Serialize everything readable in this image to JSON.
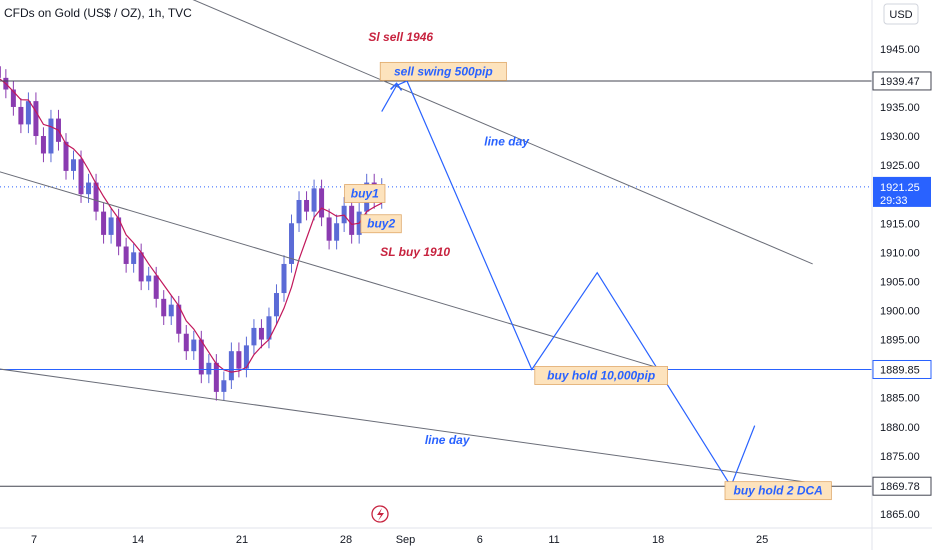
{
  "chart_data": {
    "type": "line",
    "title": "CFDs on Gold (US$ / OZ), 1h, TVC",
    "currency": "USD",
    "ylim": [
      1863,
      1953
    ],
    "y_ticks": [
      1945,
      1940,
      1935,
      1930,
      1925,
      1920,
      1915,
      1910,
      1905,
      1900,
      1895,
      1890,
      1885,
      1880,
      1875,
      1870,
      1865
    ],
    "y_tick_labels": [
      "1945.00",
      "1940.00",
      "1935.00",
      "1930.00",
      "1925.00",
      "1920.00",
      "1915.00",
      "1910.00",
      "1905.00",
      "1900.00",
      "1895.00",
      "1890.00",
      "1885.00",
      "1880.00",
      "1875.00",
      "1870.00",
      "1865.00"
    ],
    "x_ticks": [
      {
        "label": "7",
        "day": 7
      },
      {
        "label": "14",
        "day": 14
      },
      {
        "label": "21",
        "day": 21
      },
      {
        "label": "28",
        "day": 28
      },
      {
        "label": "Sep",
        "day": 32
      },
      {
        "label": "6",
        "day": 37
      },
      {
        "label": "11",
        "day": 42
      },
      {
        "label": "18",
        "day": 49
      },
      {
        "label": "25",
        "day": 56
      }
    ],
    "current_price": {
      "value": "1921.25",
      "countdown": "29:33",
      "y": 1921.25,
      "color": "#2962ff"
    },
    "horizontal_levels": [
      {
        "label": "1939.47",
        "y": 1939.47,
        "color": "#434651"
      },
      {
        "label": "1889.85",
        "y": 1889.85,
        "color": "#2962ff"
      },
      {
        "label": "1869.78",
        "y": 1869.78,
        "color": "#434651"
      }
    ],
    "trend_lines": [
      {
        "name": "",
        "points": [
          [
            17.2,
            1954
          ],
          [
            59.4,
            1908
          ]
        ],
        "color": "#6a6d78"
      },
      {
        "name": "",
        "points": [
          [
            4.5,
            1924
          ],
          [
            49.2,
            1890
          ]
        ],
        "color": "#6a6d78"
      },
      {
        "name": "",
        "points": [
          [
            4.5,
            1890
          ],
          [
            60.3,
            1870
          ]
        ],
        "color": "#6a6d78"
      }
    ],
    "projection_path": [
      [
        30.4,
        1934.2
      ],
      [
        31.4,
        1938.7
      ],
      [
        32.1,
        1939.47
      ],
      [
        40.5,
        1889.85
      ],
      [
        44.9,
        1906.5
      ],
      [
        53.9,
        1869.78
      ],
      [
        55.5,
        1880.2
      ]
    ],
    "candles_close": [
      1940,
      1938,
      1935,
      1932,
      1936,
      1930,
      1927,
      1933,
      1929,
      1924,
      1926,
      1920,
      1922,
      1917,
      1913,
      1916,
      1911,
      1908,
      1910,
      1905,
      1906,
      1902,
      1899,
      1901,
      1896,
      1893,
      1895,
      1889,
      1891,
      1886,
      1888,
      1893,
      1890,
      1894,
      1897,
      1895,
      1899,
      1903,
      1908,
      1915,
      1919,
      1917,
      1921,
      1916,
      1912,
      1915,
      1918,
      1913,
      1917,
      1922,
      1919,
      1921.25
    ],
    "annotations": [
      {
        "text": "Sl sell 1946",
        "color": "#c7233f",
        "x": 29.5,
        "y": 1946.3
      },
      {
        "text": "sell swing 500pip",
        "color": "#2962ff",
        "box": true,
        "x": 30.3,
        "y": 1940.6
      },
      {
        "text": "line day",
        "color": "#2962ff",
        "x": 37.3,
        "y": 1928.4
      },
      {
        "text": "buy1",
        "color": "#2962ff",
        "box": true,
        "x": 27.9,
        "y": 1919.6
      },
      {
        "text": "buy2",
        "color": "#2962ff",
        "box": true,
        "x": 29.0,
        "y": 1914.4
      },
      {
        "text": "SL buy 1910",
        "color": "#c7233f",
        "x": 30.3,
        "y": 1909.4
      },
      {
        "text": "buy hold 10,000pip",
        "color": "#2962ff",
        "box": true,
        "x": 40.7,
        "y": 1888.3
      },
      {
        "text": "line day",
        "color": "#2962ff",
        "x": 33.3,
        "y": 1877.0
      },
      {
        "text": "buy hold 2 DCA",
        "color": "#2962ff",
        "box": true,
        "x": 53.5,
        "y": 1868.5
      }
    ]
  }
}
